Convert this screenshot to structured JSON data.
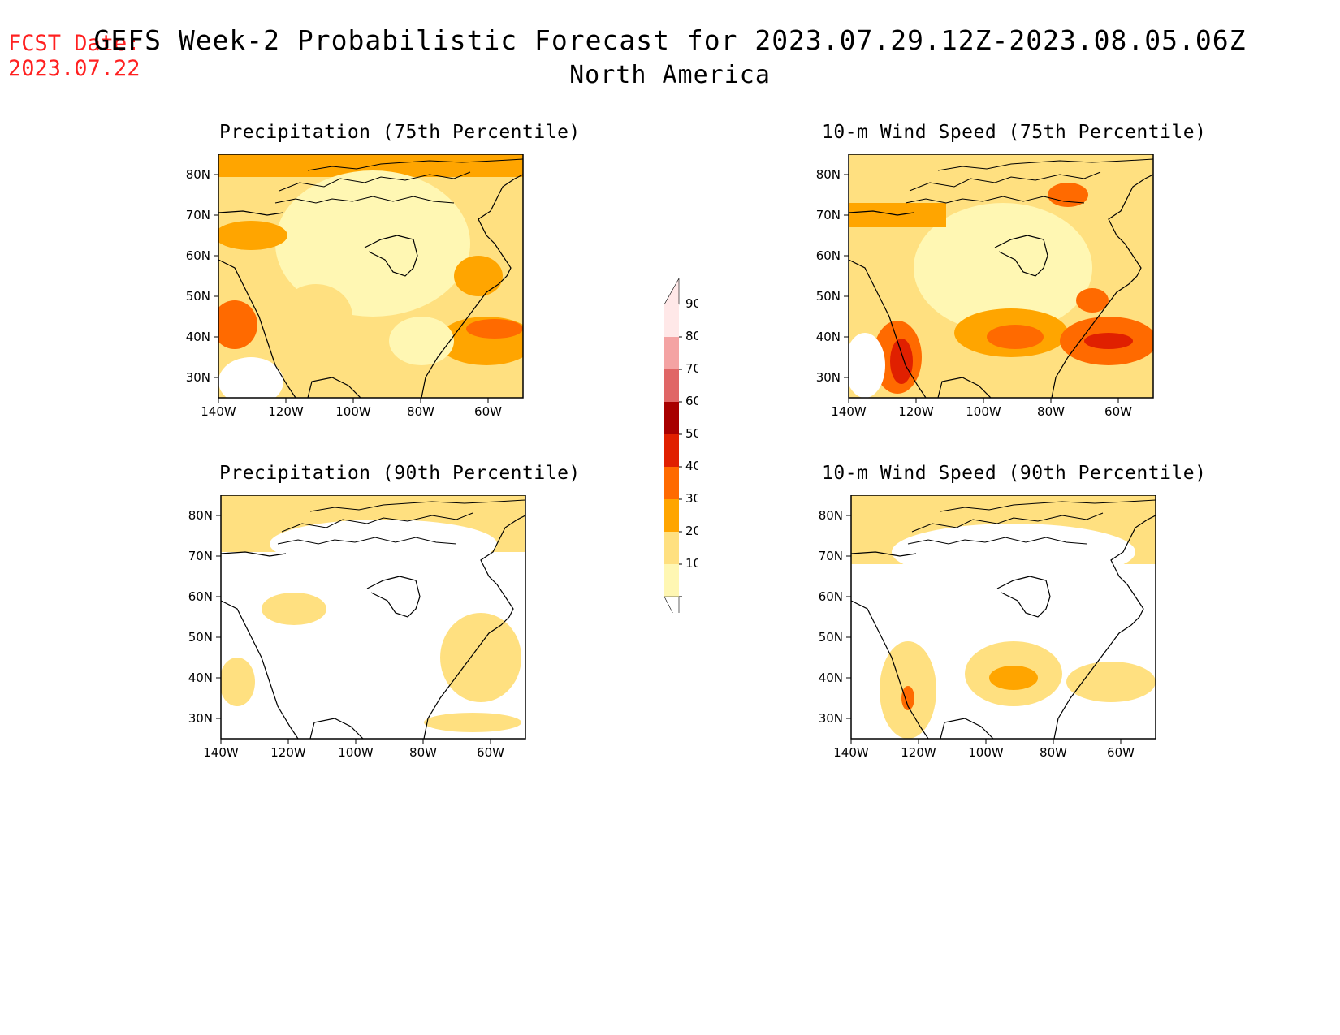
{
  "header": {
    "fcst_label": "FCST Date:",
    "fcst_date": "2023.07.22",
    "title": "GEFS Week-2 Probabilistic Forecast for 2023.07.29.12Z-2023.08.05.06Z",
    "subtitle": "North America"
  },
  "panels": [
    {
      "title": "Precipitation (75th Percentile)"
    },
    {
      "title": "10-m Wind Speed (75th Percentile)"
    },
    {
      "title": "Precipitation (90th Percentile)"
    },
    {
      "title": "10-m Wind Speed (90th Percentile)"
    }
  ],
  "axes": {
    "lat_labels": [
      "80N",
      "70N",
      "60N",
      "50N",
      "40N",
      "30N"
    ],
    "lon_labels": [
      "140W",
      "120W",
      "100W",
      "80W",
      "60W"
    ]
  },
  "colorbar": {
    "labels": [
      "90",
      "80",
      "70",
      "60",
      "50",
      "40",
      "30",
      "20",
      "10"
    ],
    "colors": [
      "#ffe8e8",
      "#f4a3a3",
      "#e06666",
      "#a80000",
      "#e02000",
      "#ff6a00",
      "#ffa500",
      "#ffe080",
      "#fff7b3"
    ]
  }
}
